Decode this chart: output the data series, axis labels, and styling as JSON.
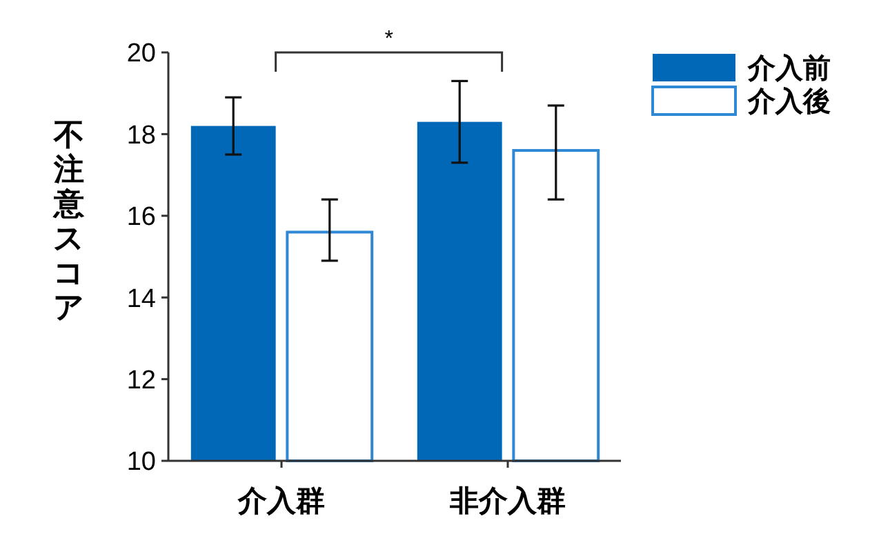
{
  "chart_data": {
    "type": "bar",
    "ylabel": "不注意スコア",
    "categories": [
      "介入群",
      "非介入群"
    ],
    "series": [
      {
        "name": "介入前",
        "color": "#0068b7",
        "values": [
          18.2,
          18.3
        ],
        "errors": [
          [
            17.5,
            18.9
          ],
          [
            17.3,
            19.3
          ]
        ]
      },
      {
        "name": "介入後",
        "color": "#ffffff",
        "values": [
          15.6,
          17.6
        ],
        "errors": [
          [
            14.9,
            16.4
          ],
          [
            16.4,
            18.7
          ]
        ]
      }
    ],
    "ylim": [
      10,
      20
    ],
    "yticks": [
      10,
      12,
      14,
      16,
      18,
      20
    ],
    "grid": false,
    "legend": "top right",
    "annotations": [
      "*"
    ]
  }
}
